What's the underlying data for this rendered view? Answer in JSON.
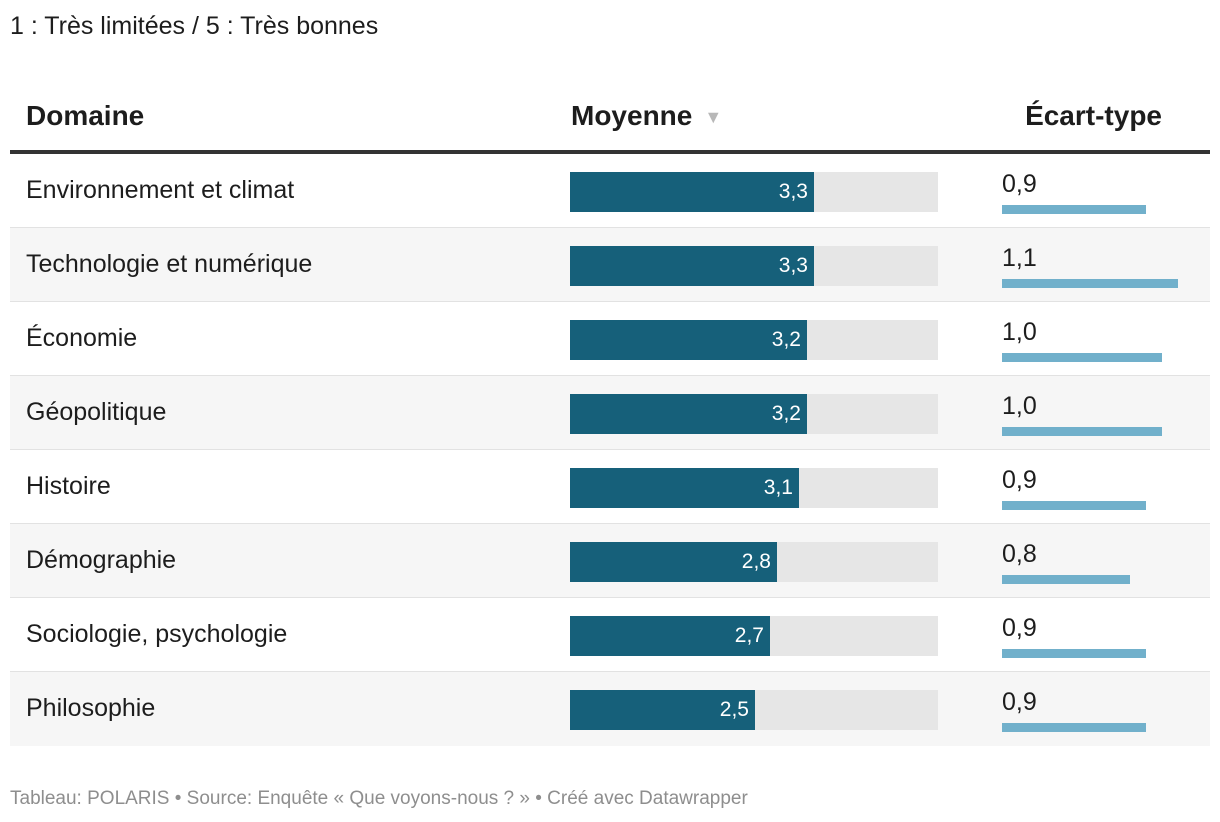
{
  "subtitle": "1 : Très limitées / 5 : Très bonnes",
  "headers": {
    "domaine": "Domaine",
    "moyenne": "Moyenne",
    "ecart": "Écart-type",
    "sort_icon": "▼"
  },
  "colors": {
    "mean_bar": "#16607a",
    "mean_track": "#e6e6e6",
    "sd_bar": "#71b0cb"
  },
  "chart_data": {
    "type": "table",
    "columns": [
      "Domaine",
      "Moyenne",
      "Écart-type"
    ],
    "mean_scale": [
      0,
      5
    ],
    "sd_scale": [
      0,
      1.2
    ],
    "sorted_by": "Moyenne",
    "rows": [
      {
        "domaine": "Environnement et climat",
        "moyenne": 3.3,
        "moyenne_label": "3,3",
        "ecart": 0.9,
        "ecart_label": "0,9"
      },
      {
        "domaine": "Technologie et numérique",
        "moyenne": 3.3,
        "moyenne_label": "3,3",
        "ecart": 1.1,
        "ecart_label": "1,1"
      },
      {
        "domaine": "Économie",
        "moyenne": 3.2,
        "moyenne_label": "3,2",
        "ecart": 1.0,
        "ecart_label": "1,0"
      },
      {
        "domaine": "Géopolitique",
        "moyenne": 3.2,
        "moyenne_label": "3,2",
        "ecart": 1.0,
        "ecart_label": "1,0"
      },
      {
        "domaine": "Histoire",
        "moyenne": 3.1,
        "moyenne_label": "3,1",
        "ecart": 0.9,
        "ecart_label": "0,9"
      },
      {
        "domaine": "Démographie",
        "moyenne": 2.8,
        "moyenne_label": "2,8",
        "ecart": 0.8,
        "ecart_label": "0,8"
      },
      {
        "domaine": "Sociologie, psychologie",
        "moyenne": 2.7,
        "moyenne_label": "2,7",
        "ecart": 0.9,
        "ecart_label": "0,9"
      },
      {
        "domaine": "Philosophie",
        "moyenne": 2.5,
        "moyenne_label": "2,5",
        "ecart": 0.9,
        "ecart_label": "0,9"
      }
    ]
  },
  "footer": "Tableau: POLARIS • Source: Enquête « Que voyons-nous ? » • Créé avec Datawrapper"
}
